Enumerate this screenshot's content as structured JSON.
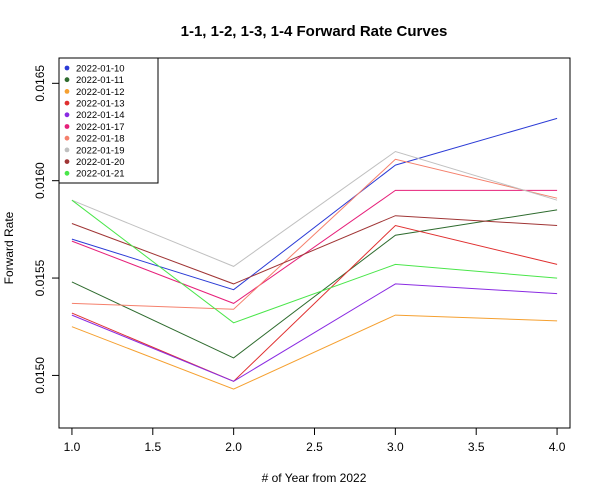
{
  "chart_data": {
    "type": "line",
    "title": "1-1, 1-2, 1-3, 1-4 Forward Rate Curves",
    "xlabel": "# of Year from 2022",
    "ylabel": "Forward Rate",
    "xlim": [
      0.92,
      4.08
    ],
    "ylim": [
      0.01473,
      0.01663
    ],
    "x_ticks": [
      1.0,
      1.5,
      2.0,
      2.5,
      3.0,
      3.5,
      4.0
    ],
    "x_tick_labels": [
      "1.0",
      "1.5",
      "2.0",
      "2.5",
      "3.0",
      "3.5",
      "4.0"
    ],
    "y_ticks": [
      0.015,
      0.0155,
      0.016,
      0.0165
    ],
    "y_tick_labels": [
      "0.0150",
      "0.0155",
      "0.0160",
      "0.0165"
    ],
    "grid": false,
    "legend_position": "top-left",
    "x": [
      1,
      2,
      3,
      4
    ],
    "series": [
      {
        "name": "2022-01-10",
        "color": "#2b3bd6",
        "values": [
          0.0157,
          0.01544,
          0.01608,
          0.01632
        ]
      },
      {
        "name": "2022-01-11",
        "color": "#2e6b2e",
        "values": [
          0.01548,
          0.01509,
          0.01572,
          0.01585
        ]
      },
      {
        "name": "2022-01-12",
        "color": "#f5a030",
        "values": [
          0.01525,
          0.01493,
          0.01531,
          0.01528
        ]
      },
      {
        "name": "2022-01-13",
        "color": "#e03030",
        "values": [
          0.01532,
          0.01497,
          0.01577,
          0.01557
        ]
      },
      {
        "name": "2022-01-14",
        "color": "#8a2be2",
        "values": [
          0.01531,
          0.01497,
          0.01547,
          0.01542
        ]
      },
      {
        "name": "2022-01-17",
        "color": "#e6207a",
        "values": [
          0.01569,
          0.01537,
          0.01595,
          0.01595
        ]
      },
      {
        "name": "2022-01-18",
        "color": "#f5806c",
        "values": [
          0.01537,
          0.01534,
          0.01611,
          0.01591
        ]
      },
      {
        "name": "2022-01-19",
        "color": "#c0c0c0",
        "values": [
          0.0159,
          0.01556,
          0.01615,
          0.0159
        ]
      },
      {
        "name": "2022-01-20",
        "color": "#a03535",
        "values": [
          0.01578,
          0.01547,
          0.01582,
          0.01577
        ]
      },
      {
        "name": "2022-01-21",
        "color": "#4ae64a",
        "values": [
          0.0159,
          0.01527,
          0.01557,
          0.0155
        ]
      }
    ]
  }
}
